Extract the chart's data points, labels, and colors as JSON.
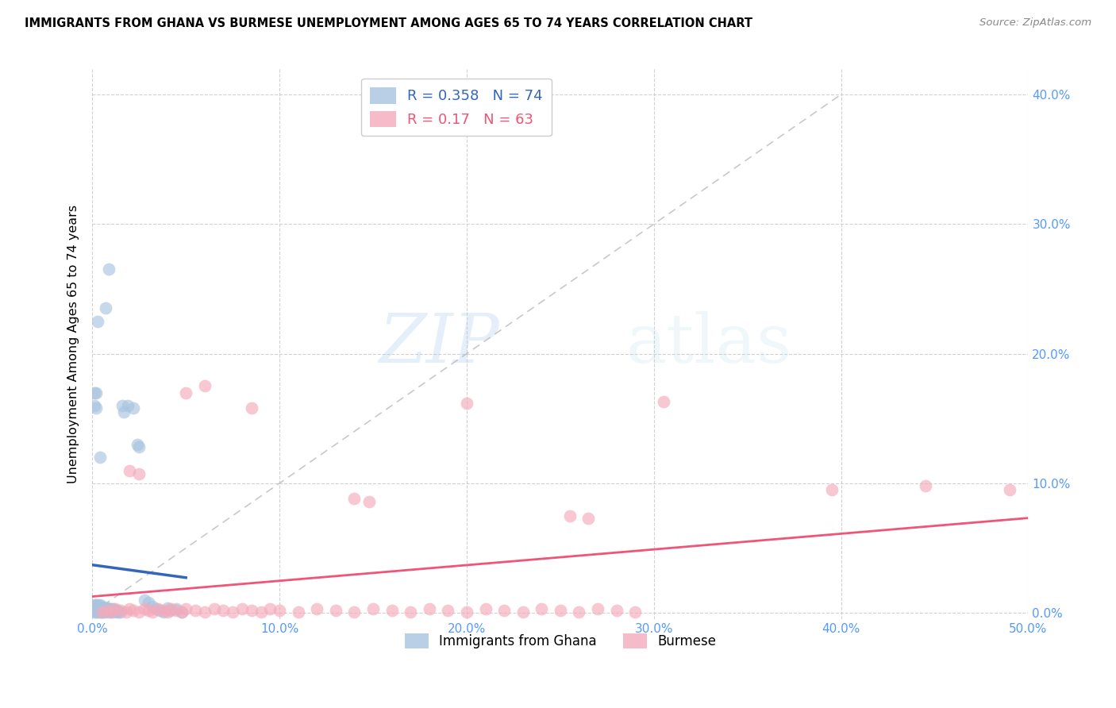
{
  "title": "IMMIGRANTS FROM GHANA VS BURMESE UNEMPLOYMENT AMONG AGES 65 TO 74 YEARS CORRELATION CHART",
  "source": "Source: ZipAtlas.com",
  "ylabel": "Unemployment Among Ages 65 to 74 years",
  "xlim": [
    0.0,
    0.5
  ],
  "ylim": [
    -0.005,
    0.42
  ],
  "xticks": [
    0.0,
    0.1,
    0.2,
    0.3,
    0.4,
    0.5
  ],
  "yticks": [
    0.0,
    0.1,
    0.2,
    0.3,
    0.4
  ],
  "ghana_R": 0.358,
  "ghana_N": 74,
  "burmese_R": 0.17,
  "burmese_N": 63,
  "ghana_color": "#A8C4E0",
  "burmese_color": "#F4AABB",
  "ghana_line_color": "#3366BB",
  "burmese_line_color": "#EE5577",
  "diagonal_color": "#BBBBBB",
  "watermark_zip": "ZIP",
  "watermark_atlas": "atlas",
  "tick_color": "#5599FF",
  "ghana_points": [
    [
      0.001,
      0.001
    ],
    [
      0.002,
      0.001
    ],
    [
      0.001,
      0.002
    ],
    [
      0.003,
      0.001
    ],
    [
      0.002,
      0.002
    ],
    [
      0.001,
      0.003
    ],
    [
      0.003,
      0.002
    ],
    [
      0.004,
      0.001
    ],
    [
      0.002,
      0.003
    ],
    [
      0.001,
      0.004
    ],
    [
      0.004,
      0.002
    ],
    [
      0.003,
      0.003
    ],
    [
      0.002,
      0.004
    ],
    [
      0.001,
      0.005
    ],
    [
      0.005,
      0.001
    ],
    [
      0.004,
      0.003
    ],
    [
      0.003,
      0.004
    ],
    [
      0.002,
      0.005
    ],
    [
      0.001,
      0.006
    ],
    [
      0.005,
      0.002
    ],
    [
      0.004,
      0.004
    ],
    [
      0.003,
      0.005
    ],
    [
      0.002,
      0.006
    ],
    [
      0.006,
      0.001
    ],
    [
      0.005,
      0.003
    ],
    [
      0.004,
      0.005
    ],
    [
      0.003,
      0.006
    ],
    [
      0.007,
      0.001
    ],
    [
      0.006,
      0.003
    ],
    [
      0.005,
      0.004
    ],
    [
      0.004,
      0.006
    ],
    [
      0.008,
      0.002
    ],
    [
      0.007,
      0.003
    ],
    [
      0.006,
      0.004
    ],
    [
      0.005,
      0.005
    ],
    [
      0.009,
      0.001
    ],
    [
      0.008,
      0.003
    ],
    [
      0.007,
      0.004
    ],
    [
      0.01,
      0.002
    ],
    [
      0.009,
      0.003
    ],
    [
      0.008,
      0.004
    ],
    [
      0.011,
      0.001
    ],
    [
      0.01,
      0.003
    ],
    [
      0.012,
      0.002
    ],
    [
      0.011,
      0.003
    ],
    [
      0.013,
      0.001
    ],
    [
      0.012,
      0.002
    ],
    [
      0.014,
      0.001
    ],
    [
      0.013,
      0.002
    ],
    [
      0.015,
      0.001
    ],
    [
      0.001,
      0.16
    ],
    [
      0.002,
      0.158
    ],
    [
      0.009,
      0.265
    ],
    [
      0.007,
      0.235
    ],
    [
      0.003,
      0.225
    ],
    [
      0.016,
      0.16
    ],
    [
      0.017,
      0.155
    ],
    [
      0.019,
      0.16
    ],
    [
      0.022,
      0.158
    ],
    [
      0.002,
      0.17
    ],
    [
      0.024,
      0.13
    ],
    [
      0.025,
      0.128
    ],
    [
      0.004,
      0.12
    ],
    [
      0.001,
      0.17
    ],
    [
      0.028,
      0.01
    ],
    [
      0.03,
      0.008
    ],
    [
      0.032,
      0.005
    ],
    [
      0.034,
      0.003
    ],
    [
      0.036,
      0.002
    ],
    [
      0.038,
      0.001
    ],
    [
      0.04,
      0.004
    ],
    [
      0.042,
      0.002
    ],
    [
      0.045,
      0.003
    ],
    [
      0.048,
      0.001
    ]
  ],
  "burmese_points": [
    [
      0.005,
      0.001
    ],
    [
      0.008,
      0.002
    ],
    [
      0.01,
      0.001
    ],
    [
      0.012,
      0.003
    ],
    [
      0.015,
      0.002
    ],
    [
      0.018,
      0.001
    ],
    [
      0.02,
      0.003
    ],
    [
      0.022,
      0.002
    ],
    [
      0.025,
      0.001
    ],
    [
      0.028,
      0.003
    ],
    [
      0.03,
      0.002
    ],
    [
      0.032,
      0.001
    ],
    [
      0.035,
      0.003
    ],
    [
      0.038,
      0.002
    ],
    [
      0.04,
      0.001
    ],
    [
      0.042,
      0.003
    ],
    [
      0.045,
      0.002
    ],
    [
      0.048,
      0.001
    ],
    [
      0.05,
      0.003
    ],
    [
      0.055,
      0.002
    ],
    [
      0.06,
      0.001
    ],
    [
      0.065,
      0.003
    ],
    [
      0.07,
      0.002
    ],
    [
      0.075,
      0.001
    ],
    [
      0.08,
      0.003
    ],
    [
      0.085,
      0.002
    ],
    [
      0.09,
      0.001
    ],
    [
      0.095,
      0.003
    ],
    [
      0.1,
      0.002
    ],
    [
      0.11,
      0.001
    ],
    [
      0.12,
      0.003
    ],
    [
      0.13,
      0.002
    ],
    [
      0.14,
      0.001
    ],
    [
      0.15,
      0.003
    ],
    [
      0.16,
      0.002
    ],
    [
      0.17,
      0.001
    ],
    [
      0.18,
      0.003
    ],
    [
      0.19,
      0.002
    ],
    [
      0.2,
      0.001
    ],
    [
      0.21,
      0.003
    ],
    [
      0.22,
      0.002
    ],
    [
      0.23,
      0.001
    ],
    [
      0.24,
      0.003
    ],
    [
      0.25,
      0.002
    ],
    [
      0.26,
      0.001
    ],
    [
      0.27,
      0.003
    ],
    [
      0.28,
      0.002
    ],
    [
      0.29,
      0.001
    ],
    [
      0.05,
      0.17
    ],
    [
      0.06,
      0.175
    ],
    [
      0.085,
      0.158
    ],
    [
      0.2,
      0.162
    ],
    [
      0.305,
      0.163
    ],
    [
      0.02,
      0.11
    ],
    [
      0.025,
      0.107
    ],
    [
      0.14,
      0.088
    ],
    [
      0.148,
      0.086
    ],
    [
      0.255,
      0.075
    ],
    [
      0.265,
      0.073
    ],
    [
      0.395,
      0.095
    ],
    [
      0.445,
      0.098
    ],
    [
      0.49,
      0.095
    ]
  ]
}
